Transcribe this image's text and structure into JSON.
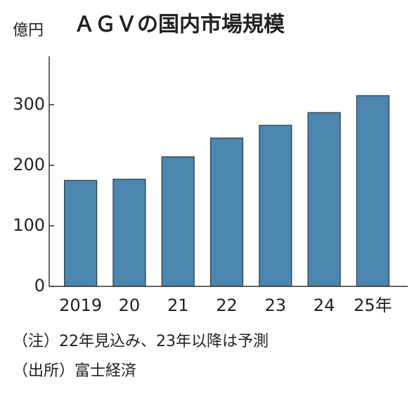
{
  "chart_data": {
    "type": "bar",
    "title": "ＡＧＶの国内市場規模",
    "y_unit": "億円",
    "categories": [
      "2019",
      "20",
      "21",
      "22",
      "23",
      "24",
      "25年"
    ],
    "values": [
      175,
      177,
      214,
      245,
      266,
      287,
      315
    ],
    "color": "#4a86ad",
    "ylim": [
      0,
      380
    ],
    "yticks": [
      0,
      100,
      200,
      300
    ],
    "notes": [
      "（注）22年見込み、23年以降は予測",
      "（出所）富士経済"
    ]
  }
}
